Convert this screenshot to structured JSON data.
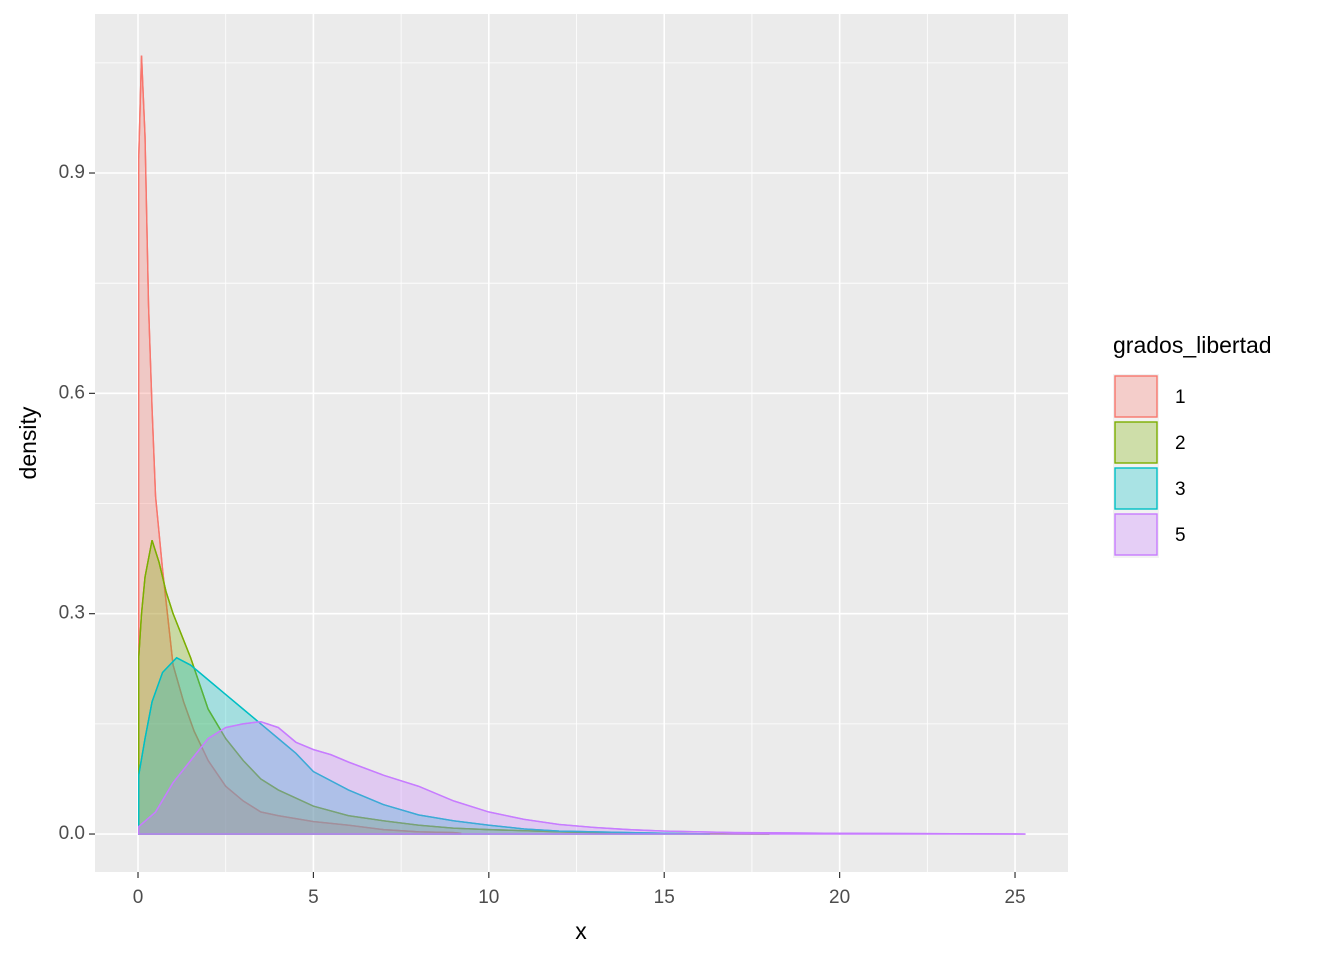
{
  "chart_data": {
    "type": "area",
    "xlabel": "x",
    "ylabel": "density",
    "xlim": [
      -1.226,
      26.51
    ],
    "ylim": [
      -0.0517,
      1.1165
    ],
    "xticks": [
      0,
      5,
      10,
      15,
      20,
      25
    ],
    "yticks": [
      {
        "value": 0,
        "label": "0.0"
      },
      0.3,
      0.6,
      0.9
    ],
    "grid": true,
    "minor_grid": true,
    "legend_title": "grados_libertad",
    "legend_position": "right",
    "series": [
      {
        "name": "1",
        "color": "#F8766D",
        "x": [
          0.02,
          0.1,
          0.2,
          0.3,
          0.4,
          0.5,
          0.7,
          1.0,
          1.3,
          1.6,
          2,
          2.5,
          3,
          3.5,
          4,
          5,
          6,
          7,
          8,
          9,
          9.2
        ],
        "values": [
          0.92,
          1.06,
          0.95,
          0.72,
          0.58,
          0.46,
          0.36,
          0.23,
          0.18,
          0.14,
          0.1,
          0.065,
          0.045,
          0.03,
          0.025,
          0.017,
          0.012,
          0.006,
          0.003,
          0.002,
          0.001
        ]
      },
      {
        "name": "2",
        "color": "#7CAE00",
        "x": [
          0.02,
          0.1,
          0.2,
          0.4,
          0.6,
          0.8,
          1,
          1.5,
          2,
          2.5,
          3,
          3.5,
          4,
          5,
          6,
          7,
          8,
          9,
          10,
          12,
          14,
          16,
          18
        ],
        "values": [
          0.24,
          0.3,
          0.35,
          0.4,
          0.37,
          0.33,
          0.3,
          0.24,
          0.17,
          0.13,
          0.1,
          0.075,
          0.06,
          0.038,
          0.025,
          0.018,
          0.012,
          0.008,
          0.006,
          0.003,
          0.001,
          0.0005,
          0
        ]
      },
      {
        "name": "3",
        "color": "#00BFC4",
        "x": [
          0.02,
          0.2,
          0.4,
          0.7,
          1.1,
          1.5,
          2,
          2.5,
          3,
          3.5,
          4,
          4.5,
          5,
          6,
          7,
          8,
          9,
          10,
          11,
          12,
          14,
          16.3
        ],
        "values": [
          0.08,
          0.13,
          0.18,
          0.22,
          0.24,
          0.23,
          0.21,
          0.19,
          0.17,
          0.15,
          0.13,
          0.11,
          0.085,
          0.06,
          0.04,
          0.026,
          0.018,
          0.012,
          0.007,
          0.004,
          0.002,
          0
        ]
      },
      {
        "name": "5",
        "color": "#C77CFF",
        "x": [
          0.02,
          0.5,
          1,
          1.5,
          2,
          2.5,
          3,
          3.5,
          4,
          4.5,
          5,
          5.5,
          6,
          7,
          8,
          9,
          10,
          11,
          12,
          13,
          14,
          15,
          17,
          20,
          25.3
        ],
        "values": [
          0.01,
          0.03,
          0.07,
          0.1,
          0.13,
          0.145,
          0.15,
          0.153,
          0.145,
          0.125,
          0.115,
          0.108,
          0.098,
          0.08,
          0.065,
          0.045,
          0.03,
          0.02,
          0.013,
          0.009,
          0.006,
          0.004,
          0.002,
          0.001,
          0
        ]
      }
    ]
  }
}
